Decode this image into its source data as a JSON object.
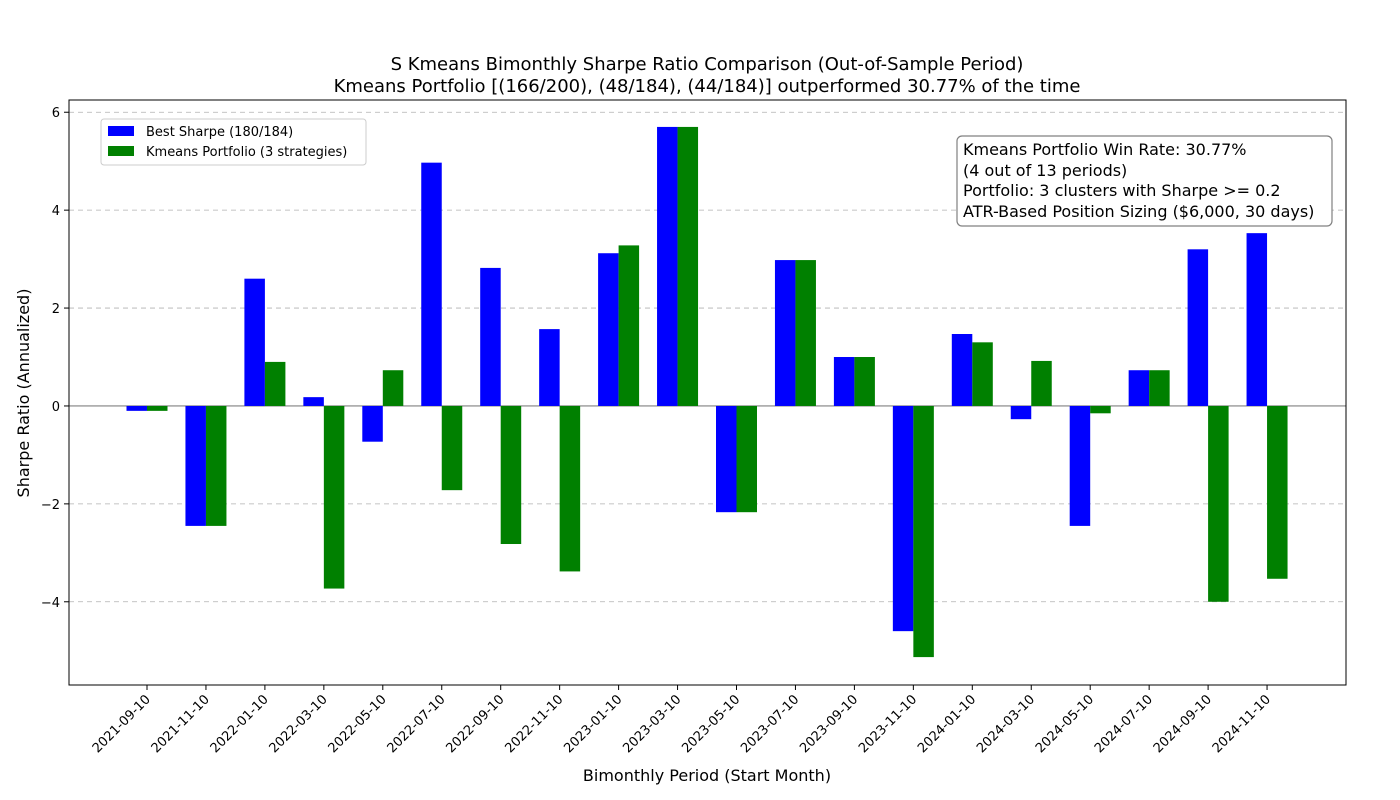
{
  "chart_data": {
    "type": "bar",
    "title": "S Kmeans Bimonthly Sharpe Ratio Comparison (Out-of-Sample Period)",
    "subtitle": "Kmeans Portfolio [(166/200), (48/184), (44/184)] outperformed 30.77% of the time",
    "xlabel": "Bimonthly Period (Start Month)",
    "ylabel": "Sharpe Ratio (Annualized)",
    "ylim": [
      -5.7,
      6.25
    ],
    "yticks": [
      {
        "value": -4,
        "label": "−4"
      },
      {
        "value": -2,
        "label": "−2"
      },
      {
        "value": 0,
        "label": "0"
      },
      {
        "value": 2,
        "label": "2"
      },
      {
        "value": 4,
        "label": "4"
      },
      {
        "value": 6,
        "label": "6"
      }
    ],
    "grid": "y-dashed",
    "legend_position": "top-left",
    "categories": [
      "2021-09-10",
      "2021-11-10",
      "2022-01-10",
      "2022-03-10",
      "2022-05-10",
      "2022-07-10",
      "2022-09-10",
      "2022-11-10",
      "2023-01-10",
      "2023-03-10",
      "2023-05-10",
      "2023-07-10",
      "2023-09-10",
      "2023-11-10",
      "2024-01-10",
      "2024-03-10",
      "2024-05-10",
      "2024-07-10",
      "2024-09-10",
      "2024-11-10"
    ],
    "series": [
      {
        "name": "Best Sharpe (180/184)",
        "color": "#0000ff",
        "values": [
          -0.1,
          -2.45,
          2.6,
          0.18,
          -0.73,
          4.97,
          2.82,
          1.57,
          3.12,
          5.7,
          -2.17,
          2.98,
          1.0,
          -4.6,
          1.47,
          -0.27,
          -2.45,
          0.73,
          3.2,
          3.53
        ]
      },
      {
        "name": "Kmeans Portfolio (3 strategies)",
        "color": "#008000",
        "values": [
          -0.1,
          -2.45,
          0.9,
          -3.73,
          0.73,
          -1.72,
          -2.82,
          -3.38,
          3.28,
          5.7,
          -2.17,
          2.98,
          1.0,
          -5.13,
          1.3,
          0.92,
          -0.15,
          0.73,
          -4.0,
          -3.53
        ]
      }
    ],
    "annotation": [
      "Kmeans Portfolio Win Rate: 30.77%",
      "(4 out of 13 periods)",
      "Portfolio: 3 clusters with Sharpe >= 0.2",
      "ATR-Based Position Sizing ($6,000, 30 days)"
    ]
  }
}
